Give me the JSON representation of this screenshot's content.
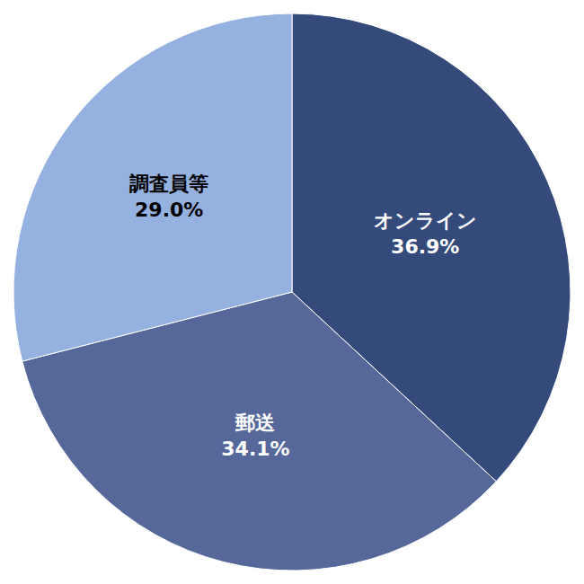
{
  "chart_data": {
    "type": "pie",
    "categories": [
      "オンライン",
      "郵送",
      "調査員等"
    ],
    "values": [
      36.9,
      34.1,
      29.0
    ],
    "value_labels": [
      "36.9%",
      "34.1%",
      "29.0%"
    ],
    "colors": [
      "#344a7a",
      "#56679a",
      "#95b1df"
    ],
    "data_labels": true
  }
}
